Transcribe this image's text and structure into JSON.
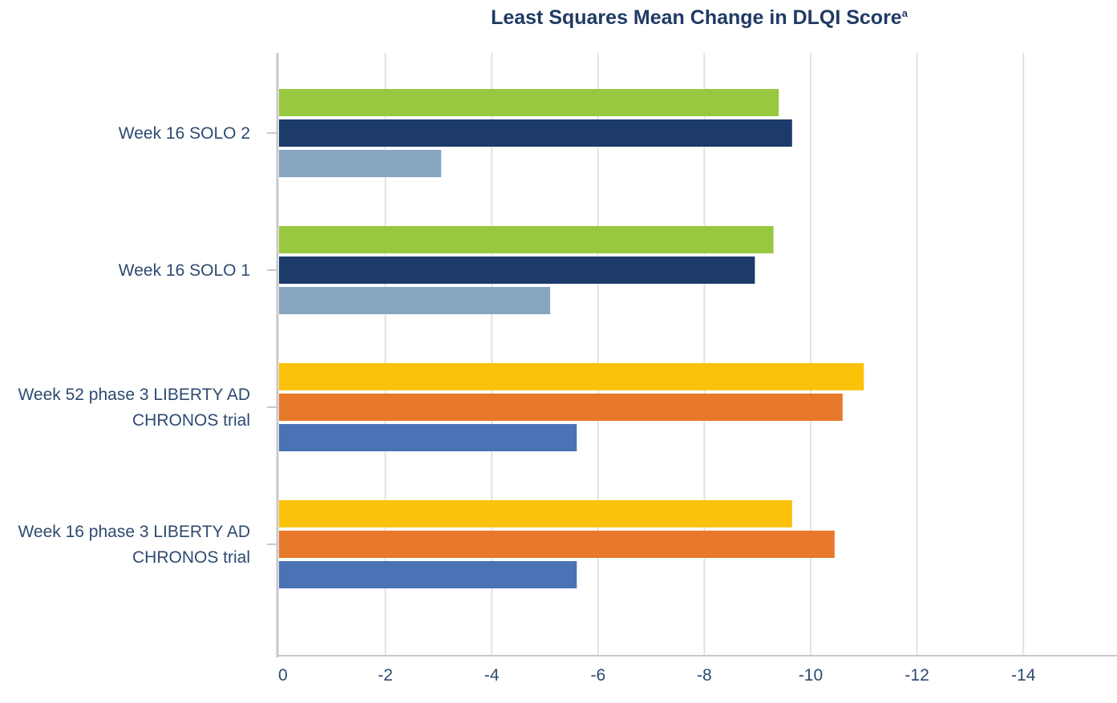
{
  "chart_data": {
    "type": "bar",
    "orientation": "horizontal",
    "title": "Least Squares Mean Change in DLQI Score",
    "title_superscript": "a",
    "xlabel": "",
    "ylabel": "",
    "xlim": [
      0,
      -15.8
    ],
    "grid": true,
    "x_ticks": [
      "0",
      "-2",
      "-4",
      "-6",
      "-8",
      "-10",
      "-12",
      "-14"
    ],
    "x_tick_values": [
      0,
      -2,
      -4,
      -6,
      -8,
      -10,
      -12,
      -14
    ],
    "categories": [
      {
        "lines": [
          "Week 16 SOLO 2"
        ],
        "bars": [
          {
            "value": -9.4,
            "color": "#97c83f"
          },
          {
            "value": -9.65,
            "color": "#1c3b6b"
          },
          {
            "value": -3.05,
            "color": "#86a5bf"
          }
        ]
      },
      {
        "lines": [
          "Week 16 SOLO 1"
        ],
        "bars": [
          {
            "value": -9.3,
            "color": "#97c83f"
          },
          {
            "value": -8.95,
            "color": "#1c3b6b"
          },
          {
            "value": -5.1,
            "color": "#86a5bf"
          }
        ]
      },
      {
        "lines": [
          "Week 52 phase 3 LIBERTY AD",
          "CHRONOS trial"
        ],
        "bars": [
          {
            "value": -11.0,
            "color": "#fbc20a"
          },
          {
            "value": -10.6,
            "color": "#e8782a"
          },
          {
            "value": -5.6,
            "color": "#4a72b5"
          }
        ]
      },
      {
        "lines": [
          "Week 16 phase 3 LIBERTY AD",
          "CHRONOS trial"
        ],
        "bars": [
          {
            "value": -9.65,
            "color": "#fbc20a"
          },
          {
            "value": -10.45,
            "color": "#e8782a"
          },
          {
            "value": -5.6,
            "color": "#4a72b5"
          }
        ]
      }
    ],
    "colors": {
      "title": "#1f3a64",
      "label": "#2e4a70",
      "gridline": "#e2e2e2",
      "axis": "#c9c9c9"
    }
  }
}
